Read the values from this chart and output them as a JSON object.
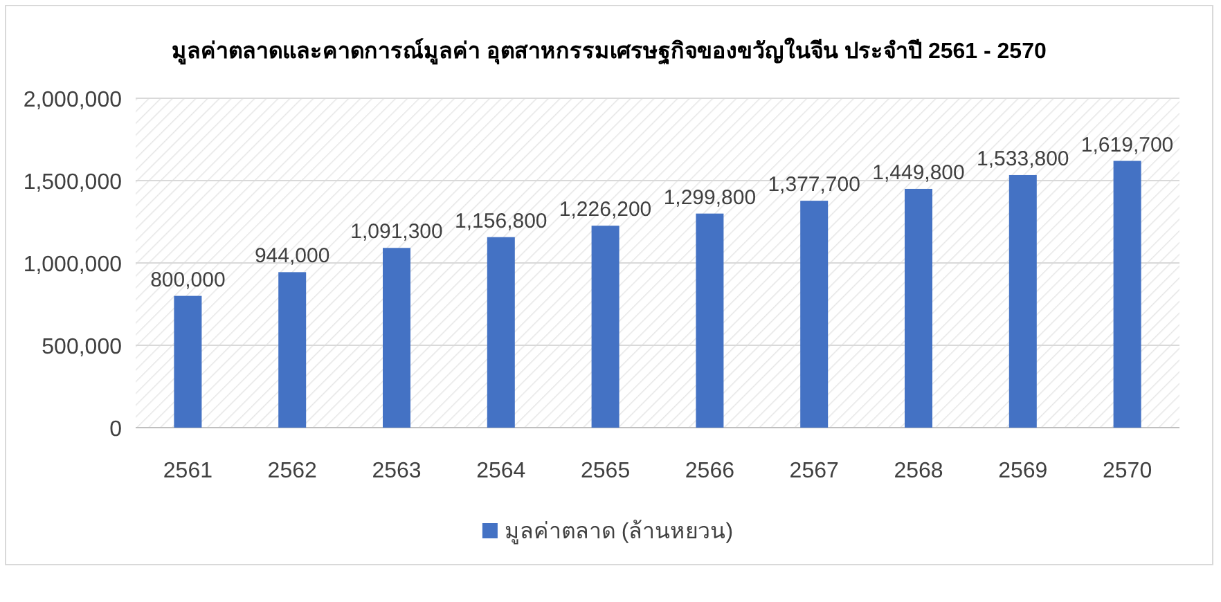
{
  "chart_data": {
    "type": "bar",
    "title": "มูลค่าตลาดและคาดการณ์มูลค่า อุตสาหกรรมเศรษฐกิจของขวัญในจีน ประจำปี 2561 - 2570",
    "categories": [
      "2561",
      "2562",
      "2563",
      "2564",
      "2565",
      "2566",
      "2567",
      "2568",
      "2569",
      "2570"
    ],
    "series": [
      {
        "name": "มูลค่าตลาด (ล้านหยวน)",
        "color": "#4472c4",
        "values": [
          800000,
          944000,
          1091300,
          1156800,
          1226200,
          1299800,
          1377700,
          1449800,
          1533800,
          1619700
        ],
        "value_labels": [
          "800,000",
          "944,000",
          "1,091,300",
          "1,156,800",
          "1,226,200",
          "1,299,800",
          "1,377,700",
          "1,449,800",
          "1,533,800",
          "1,619,700"
        ]
      }
    ],
    "ylim": [
      0,
      2000000
    ],
    "yticks": [
      0,
      {
        "value": 500000,
        "label": "500,000"
      },
      {
        "value": 1000000,
        "label": "1,000,000"
      },
      {
        "value": 1500000,
        "label": "1,500,000"
      },
      {
        "value": 2000000,
        "label": "2,000,000"
      }
    ],
    "grid": "y",
    "legend": "bottom"
  }
}
